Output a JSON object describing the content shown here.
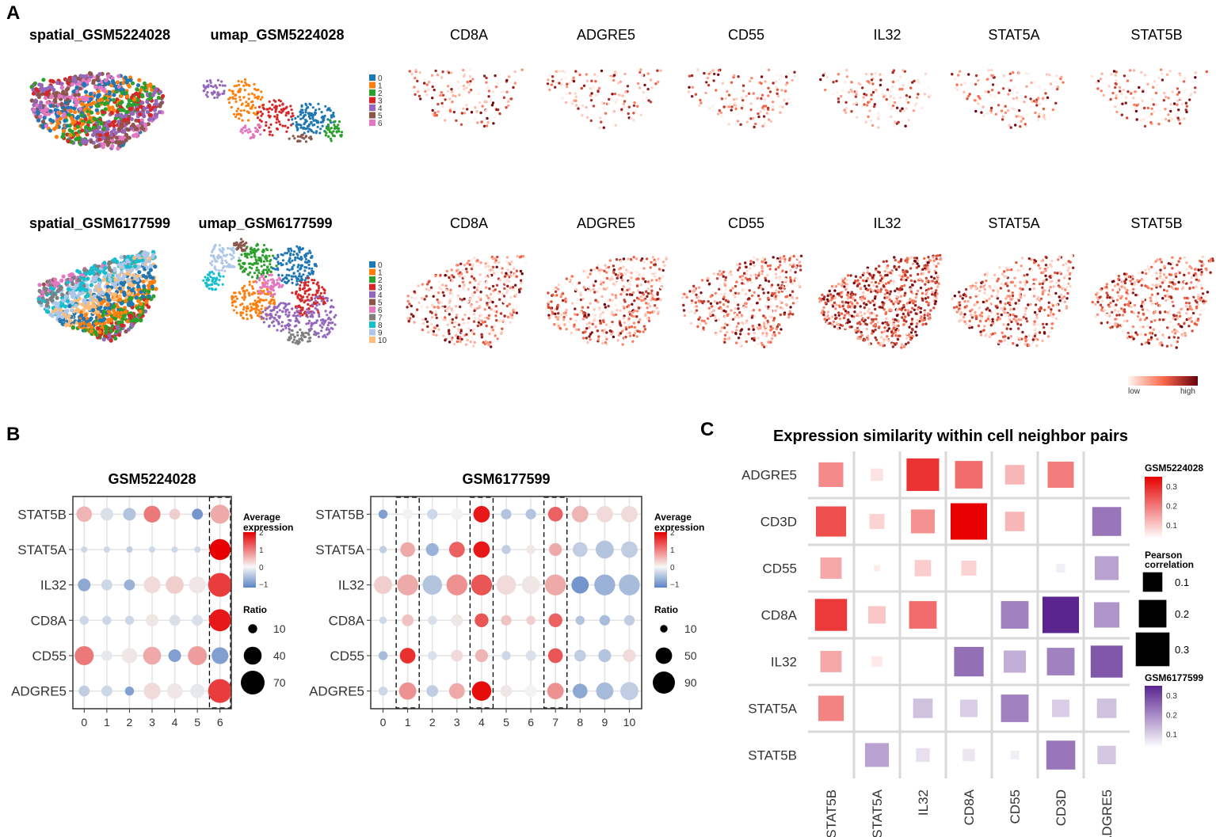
{
  "panel_labels": {
    "a": "A",
    "b": "B",
    "c": "C"
  },
  "panel_a": {
    "rows": [
      {
        "spatial_title": "spatial_GSM5224028",
        "umap_title": "umap_GSM5224028",
        "genes": [
          "CD8A",
          "ADGRE5",
          "CD55",
          "IL32",
          "STAT5A",
          "STAT5B"
        ],
        "cluster_legend": [
          "0",
          "1",
          "2",
          "3",
          "4",
          "5",
          "6"
        ]
      },
      {
        "spatial_title": "spatial_GSM6177599",
        "umap_title": "umap_GSM6177599",
        "genes": [
          "CD8A",
          "ADGRE5",
          "CD55",
          "IL32",
          "STAT5A",
          "STAT5B"
        ],
        "cluster_legend": [
          "0",
          "1",
          "2",
          "3",
          "4",
          "5",
          "6",
          "7",
          "8",
          "9",
          "10"
        ]
      }
    ],
    "cluster_colors": [
      "#1f77b4",
      "#ff7f0e",
      "#2ca02c",
      "#d62728",
      "#9467bd",
      "#8c564b",
      "#e377c2",
      "#7f7f7f",
      "#17becf",
      "#aec7e8",
      "#ffbb78"
    ],
    "expression_legend": {
      "low": "low",
      "high": "high",
      "low_color": "#fff5f0",
      "high_color": "#8b0000"
    }
  },
  "chart_data": [
    {
      "type": "dot",
      "title": "GSM5224028",
      "genes": [
        "STAT5B",
        "STAT5A",
        "IL32",
        "CD8A",
        "CD55",
        "ADGRE5"
      ],
      "clusters": [
        "0",
        "1",
        "2",
        "3",
        "4",
        "5",
        "6"
      ],
      "highlighted_clusters": [
        "6"
      ],
      "avg_expression": [
        [
          0.5,
          -0.2,
          -0.5,
          1.0,
          0.3,
          -1.0,
          0.6
        ],
        [
          -0.3,
          -0.3,
          -0.4,
          -0.3,
          -0.3,
          -0.3,
          2.0
        ],
        [
          -0.8,
          -0.3,
          -0.7,
          0.2,
          0.3,
          0.1,
          1.5
        ],
        [
          -0.3,
          -0.3,
          -0.3,
          0.1,
          -0.2,
          -0.2,
          1.8
        ],
        [
          1.0,
          -0.1,
          0.1,
          0.6,
          -0.9,
          0.7,
          -0.9
        ],
        [
          -0.4,
          -0.3,
          -0.9,
          0.2,
          0.1,
          -0.1,
          1.5
        ]
      ],
      "ratio": [
        [
          30,
          20,
          20,
          35,
          15,
          15,
          45
        ],
        [
          5,
          5,
          5,
          5,
          5,
          5,
          55
        ],
        [
          20,
          15,
          15,
          35,
          40,
          35,
          70
        ],
        [
          10,
          10,
          10,
          20,
          15,
          15,
          60
        ],
        [
          45,
          15,
          30,
          40,
          20,
          45,
          35
        ],
        [
          15,
          15,
          10,
          35,
          30,
          25,
          70
        ]
      ],
      "color_legend": {
        "title": "Average\nexpression",
        "ticks": [
          "2",
          "1",
          "0",
          "−1"
        ],
        "range": [
          -1.2,
          2
        ]
      },
      "size_legend": {
        "title": "Ratio",
        "values": [
          10,
          40,
          70
        ]
      }
    },
    {
      "type": "dot",
      "title": "GSM6177599",
      "genes": [
        "STAT5B",
        "STAT5A",
        "IL32",
        "CD8A",
        "CD55",
        "ADGRE5"
      ],
      "clusters": [
        "0",
        "1",
        "2",
        "3",
        "4",
        "5",
        "6",
        "7",
        "8",
        "9",
        "10"
      ],
      "highlighted_clusters": [
        "1",
        "4",
        "7"
      ],
      "avg_expression": [
        [
          -0.9,
          0.0,
          -0.3,
          0.0,
          1.8,
          -0.5,
          -0.5,
          1.2,
          0.5,
          0.2,
          0.2
        ],
        [
          -0.4,
          0.6,
          -0.7,
          1.2,
          1.8,
          -0.4,
          0.1,
          0.6,
          -0.4,
          -0.5,
          -0.4
        ],
        [
          0.3,
          0.6,
          -0.5,
          0.8,
          1.3,
          0.2,
          0.1,
          0.6,
          -1.0,
          -0.7,
          -0.6
        ],
        [
          -0.3,
          0.4,
          -0.2,
          0.1,
          1.3,
          0.4,
          0.3,
          1.2,
          -0.5,
          -0.6,
          -0.4
        ],
        [
          -0.6,
          1.6,
          -0.2,
          0.2,
          0.5,
          -0.3,
          -0.2,
          1.3,
          -0.4,
          -0.5,
          0.2
        ],
        [
          -0.3,
          0.8,
          -0.4,
          0.6,
          1.9,
          0.1,
          0.0,
          0.8,
          -0.8,
          -0.6,
          -0.4
        ]
      ],
      "ratio": [
        [
          15,
          20,
          20,
          25,
          50,
          20,
          20,
          40,
          50,
          50,
          50
        ],
        [
          10,
          40,
          30,
          45,
          50,
          15,
          15,
          30,
          40,
          60,
          50
        ],
        [
          60,
          80,
          70,
          80,
          80,
          70,
          60,
          80,
          55,
          80,
          80
        ],
        [
          10,
          25,
          15,
          25,
          35,
          20,
          15,
          35,
          15,
          20,
          20
        ],
        [
          15,
          45,
          15,
          25,
          30,
          15,
          20,
          40,
          25,
          30,
          30
        ],
        [
          15,
          55,
          25,
          45,
          70,
          25,
          25,
          50,
          40,
          55,
          60
        ]
      ],
      "color_legend": {
        "title": "Average\nexpression",
        "ticks": [
          "2",
          "1",
          "0",
          "−1"
        ],
        "range": [
          -1.2,
          2
        ]
      },
      "size_legend": {
        "title": "Ratio",
        "values": [
          10,
          50,
          90
        ]
      }
    },
    {
      "type": "heatmap",
      "title": "Expression similarity within cell neighbor pairs",
      "rows": [
        "ADGRE5",
        "CD3D",
        "CD55",
        "CD8A",
        "IL32",
        "STAT5A",
        "STAT5B"
      ],
      "columns": [
        "STAT5B",
        "STAT5A",
        "IL32",
        "CD8A",
        "CD55",
        "CD3D",
        "ADGRE5"
      ],
      "cells": [
        {
          "row": "ADGRE5",
          "col": "STAT5B",
          "value": 0.16,
          "dataset": "GSM5224028"
        },
        {
          "row": "ADGRE5",
          "col": "STAT5A",
          "value": 0.04,
          "dataset": "GSM5224028"
        },
        {
          "row": "ADGRE5",
          "col": "IL32",
          "value": 0.28,
          "dataset": "GSM5224028"
        },
        {
          "row": "ADGRE5",
          "col": "CD8A",
          "value": 0.2,
          "dataset": "GSM5224028"
        },
        {
          "row": "ADGRE5",
          "col": "CD55",
          "value": 0.1,
          "dataset": "GSM5224028"
        },
        {
          "row": "ADGRE5",
          "col": "CD3D",
          "value": 0.18,
          "dataset": "GSM5224028"
        },
        {
          "row": "CD3D",
          "col": "STAT5B",
          "value": 0.24,
          "dataset": "GSM5224028"
        },
        {
          "row": "CD3D",
          "col": "STAT5A",
          "value": 0.06,
          "dataset": "GSM5224028"
        },
        {
          "row": "CD3D",
          "col": "IL32",
          "value": 0.15,
          "dataset": "GSM5224028"
        },
        {
          "row": "CD3D",
          "col": "CD8A",
          "value": 0.35,
          "dataset": "GSM5224028"
        },
        {
          "row": "CD3D",
          "col": "CD55",
          "value": 0.1,
          "dataset": "GSM5224028"
        },
        {
          "row": "CD3D",
          "col": "ADGRE5",
          "value": 0.22,
          "dataset": "GSM6177599"
        },
        {
          "row": "CD55",
          "col": "STAT5B",
          "value": 0.12,
          "dataset": "GSM5224028"
        },
        {
          "row": "CD55",
          "col": "STAT5A",
          "value": 0.01,
          "dataset": "GSM5224028"
        },
        {
          "row": "CD55",
          "col": "IL32",
          "value": 0.07,
          "dataset": "GSM5224028"
        },
        {
          "row": "CD55",
          "col": "CD8A",
          "value": 0.06,
          "dataset": "GSM5224028"
        },
        {
          "row": "CD55",
          "col": "CD3D",
          "value": 0.02,
          "dataset": "GSM6177599"
        },
        {
          "row": "CD55",
          "col": "ADGRE5",
          "value": 0.15,
          "dataset": "GSM6177599"
        },
        {
          "row": "CD8A",
          "col": "STAT5B",
          "value": 0.27,
          "dataset": "GSM5224028"
        },
        {
          "row": "CD8A",
          "col": "STAT5A",
          "value": 0.08,
          "dataset": "GSM5224028"
        },
        {
          "row": "CD8A",
          "col": "IL32",
          "value": 0.2,
          "dataset": "GSM5224028"
        },
        {
          "row": "CD8A",
          "col": "CD55",
          "value": 0.2,
          "dataset": "GSM6177599"
        },
        {
          "row": "CD8A",
          "col": "CD3D",
          "value": 0.35,
          "dataset": "GSM6177599"
        },
        {
          "row": "CD8A",
          "col": "ADGRE5",
          "value": 0.17,
          "dataset": "GSM6177599"
        },
        {
          "row": "IL32",
          "col": "STAT5B",
          "value": 0.12,
          "dataset": "GSM5224028"
        },
        {
          "row": "IL32",
          "col": "STAT5A",
          "value": 0.03,
          "dataset": "GSM5224028"
        },
        {
          "row": "IL32",
          "col": "CD8A",
          "value": 0.23,
          "dataset": "GSM6177599"
        },
        {
          "row": "IL32",
          "col": "CD55",
          "value": 0.13,
          "dataset": "GSM6177599"
        },
        {
          "row": "IL32",
          "col": "CD3D",
          "value": 0.2,
          "dataset": "GSM6177599"
        },
        {
          "row": "IL32",
          "col": "ADGRE5",
          "value": 0.27,
          "dataset": "GSM6177599"
        },
        {
          "row": "STAT5A",
          "col": "STAT5B",
          "value": 0.17,
          "dataset": "GSM5224028"
        },
        {
          "row": "STAT5A",
          "col": "IL32",
          "value": 0.1,
          "dataset": "GSM6177599"
        },
        {
          "row": "STAT5A",
          "col": "CD8A",
          "value": 0.08,
          "dataset": "GSM6177599"
        },
        {
          "row": "STAT5A",
          "col": "CD55",
          "value": 0.2,
          "dataset": "GSM6177599"
        },
        {
          "row": "STAT5A",
          "col": "CD3D",
          "value": 0.08,
          "dataset": "GSM6177599"
        },
        {
          "row": "STAT5A",
          "col": "ADGRE5",
          "value": 0.1,
          "dataset": "GSM6177599"
        },
        {
          "row": "STAT5B",
          "col": "STAT5A",
          "value": 0.15,
          "dataset": "GSM6177599"
        },
        {
          "row": "STAT5B",
          "col": "IL32",
          "value": 0.05,
          "dataset": "GSM6177599"
        },
        {
          "row": "STAT5B",
          "col": "CD8A",
          "value": 0.04,
          "dataset": "GSM6177599"
        },
        {
          "row": "STAT5B",
          "col": "CD55",
          "value": 0.02,
          "dataset": "GSM6177599"
        },
        {
          "row": "STAT5B",
          "col": "CD3D",
          "value": 0.22,
          "dataset": "GSM6177599"
        },
        {
          "row": "STAT5B",
          "col": "ADGRE5",
          "value": 0.09,
          "dataset": "GSM6177599"
        }
      ],
      "legends": {
        "dataset1": {
          "title": "GSM5224028",
          "ticks": [
            "0.3",
            "0.2",
            "0.1"
          ],
          "color": "#e60000"
        },
        "size": {
          "title": "Pearson\ncorrelation",
          "values": [
            "0.1",
            "0.2",
            "0.3"
          ]
        },
        "dataset2": {
          "title": "GSM6177599",
          "ticks": [
            "0.3",
            "0.2",
            "0.1"
          ],
          "color": "#5b2590"
        }
      }
    }
  ]
}
